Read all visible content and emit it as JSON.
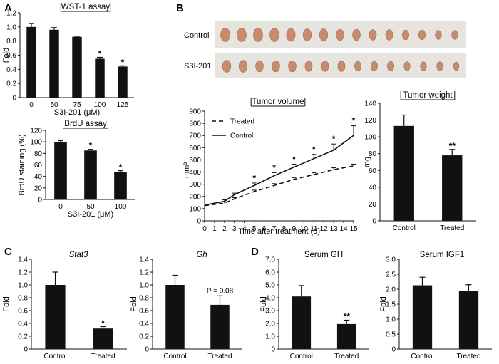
{
  "panels": [
    {
      "letter": "A"
    },
    {
      "letter": "B"
    },
    {
      "letter": "C"
    },
    {
      "letter": "D"
    }
  ],
  "photos": {
    "rows": [
      {
        "label": "Control",
        "count": 15
      },
      {
        "label": "S3I-201",
        "count": 15
      }
    ]
  },
  "chart_data": [
    {
      "id": "wst1",
      "type": "bar",
      "title": "WST-1 assay",
      "title_underlined": true,
      "categories": [
        "0",
        "50",
        "75",
        "100",
        "125"
      ],
      "values": [
        1.0,
        0.96,
        0.86,
        0.55,
        0.44
      ],
      "errors": [
        0.05,
        0.03,
        0.01,
        0.02,
        0.01
      ],
      "annotations": [
        "",
        "",
        "",
        "*",
        "*"
      ],
      "xlabel": "S3I-201 (μM)",
      "ylabel": "Fold",
      "ylim": [
        0,
        1.2
      ],
      "yticks": [
        "0",
        "0.2",
        "0.4",
        "0.6",
        "0.8",
        "1.0",
        "1.2"
      ],
      "bar_color": "#111111"
    },
    {
      "id": "brdu",
      "type": "bar",
      "title": "BrdU assay",
      "title_underlined": true,
      "categories": [
        "0",
        "50",
        "100"
      ],
      "values": [
        100,
        85,
        47
      ],
      "errors": [
        2,
        2,
        3
      ],
      "annotations": [
        "",
        "*",
        "*"
      ],
      "xlabel": "S3I-201 (μM)",
      "ylabel": "BrdU staining (%)",
      "ylim": [
        0,
        120
      ],
      "yticks": [
        "0",
        "20",
        "40",
        "60",
        "80",
        "100",
        "120"
      ],
      "bar_color": "#111111"
    },
    {
      "id": "volume",
      "type": "line",
      "title": "Tumor volume",
      "title_underlined": true,
      "x": [
        0,
        1,
        2,
        3,
        4,
        5,
        6,
        7,
        8,
        9,
        10,
        11,
        12,
        13,
        14,
        15
      ],
      "xticks": [
        "0",
        "1",
        "2",
        "3",
        "4",
        "5",
        "6",
        "7",
        "8",
        "9",
        "10",
        "11",
        "12",
        "13",
        "14",
        "15"
      ],
      "xlabel": "Time after treatment (d)",
      "ylabel": "mm³",
      "ylim": [
        0,
        900
      ],
      "yticks": [
        "0",
        "100",
        "200",
        "300",
        "400",
        "500",
        "600",
        "700",
        "800",
        "900"
      ],
      "series": [
        {
          "name": "Treated",
          "dash": true,
          "points": [
            [
              0,
              125
            ],
            [
              2,
              145
            ],
            [
              3,
              180
            ],
            [
              5,
              240
            ],
            [
              7,
              290
            ],
            [
              9,
              340
            ],
            [
              11,
              380
            ],
            [
              13,
              420
            ],
            [
              15,
              450
            ]
          ],
          "errors": [
            0,
            10,
            10,
            12,
            15,
            15,
            15,
            15,
            15
          ]
        },
        {
          "name": "Control",
          "dash": false,
          "points": [
            [
              0,
              130
            ],
            [
              2,
              160
            ],
            [
              3,
              215
            ],
            [
              5,
              290
            ],
            [
              7,
              370
            ],
            [
              9,
              440
            ],
            [
              11,
              510
            ],
            [
              13,
              580
            ],
            [
              15,
              700
            ]
          ],
          "errors": [
            0,
            12,
            12,
            20,
            25,
            25,
            35,
            50,
            80
          ]
        }
      ],
      "star_x": [
        5,
        7,
        9,
        11,
        13,
        15
      ],
      "star_label": "*",
      "legend_position": "top-left"
    },
    {
      "id": "weight",
      "type": "bar",
      "title": "Tumor weight",
      "title_underlined": true,
      "categories": [
        "Control",
        "Treated"
      ],
      "values": [
        113,
        78
      ],
      "errors": [
        13,
        7
      ],
      "annotations": [
        "",
        "**"
      ],
      "xlabel": "",
      "ylabel": "mg",
      "ylim": [
        0,
        140
      ],
      "yticks": [
        "0",
        "20",
        "40",
        "60",
        "80",
        "100",
        "120",
        "140"
      ],
      "bar_color": "#111111"
    },
    {
      "id": "stat3",
      "type": "bar",
      "title": "Stat3",
      "title_italic": true,
      "categories": [
        "Control",
        "Treated"
      ],
      "values": [
        1.0,
        0.32
      ],
      "errors": [
        0.2,
        0.03
      ],
      "annotations": [
        "",
        "*"
      ],
      "ylabel": "Fold",
      "ylim": [
        0,
        1.4
      ],
      "yticks": [
        "0",
        "0.2",
        "0.4",
        "0.6",
        "0.8",
        "1.0",
        "1.2",
        "1.4"
      ],
      "bar_color": "#111111"
    },
    {
      "id": "gh",
      "type": "bar",
      "title": "Gh",
      "title_italic": true,
      "categories": [
        "Control",
        "Treated"
      ],
      "values": [
        1.0,
        0.69
      ],
      "errors": [
        0.15,
        0.14
      ],
      "annotations": [
        "",
        "P = 0.08"
      ],
      "ylabel": "Fold",
      "ylim": [
        0,
        1.4
      ],
      "yticks": [
        "0",
        "0.2",
        "0.4",
        "0.6",
        "0.8",
        "1.0",
        "1.2",
        "1.4"
      ],
      "bar_color": "#111111"
    },
    {
      "id": "serumgh",
      "type": "bar",
      "title": "Serum GH",
      "categories": [
        "Control",
        "Treated"
      ],
      "values": [
        4.1,
        1.95
      ],
      "errors": [
        0.85,
        0.3
      ],
      "annotations": [
        "",
        "**"
      ],
      "ylabel": "Fold",
      "ylim": [
        0,
        7.0
      ],
      "yticks": [
        "0",
        "1.0",
        "2.0",
        "3.0",
        "4.0",
        "5.0",
        "6.0",
        "7.0"
      ],
      "bar_color": "#111111"
    },
    {
      "id": "serumigf1",
      "type": "bar",
      "title": "Serum IGF1",
      "categories": [
        "Control",
        "Treated"
      ],
      "values": [
        2.13,
        1.95
      ],
      "errors": [
        0.27,
        0.2
      ],
      "annotations": [
        "",
        ""
      ],
      "ylabel": "Fold",
      "ylim": [
        0,
        3.0
      ],
      "yticks": [
        "0",
        "0.5",
        "1.0",
        "1.5",
        "2.0",
        "2.5",
        "3.0"
      ],
      "bar_color": "#111111"
    }
  ]
}
